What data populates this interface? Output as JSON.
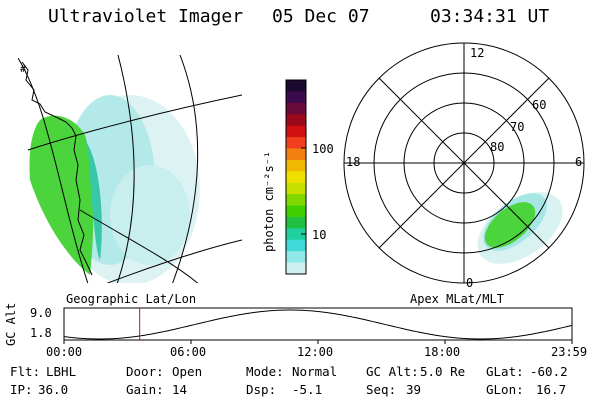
{
  "header": {
    "instrument": "Ultraviolet Imager",
    "date": "05 Dec 07",
    "time": "03:34:31 UT"
  },
  "geo_panel": {
    "label": "Geographic Lat/Lon"
  },
  "colorbar": {
    "unit": "photon cm⁻²s⁻¹",
    "ticks": [
      "100",
      "10"
    ],
    "colors": [
      "#1a0a2e",
      "#3a0a4a",
      "#6a0a3a",
      "#9a0a1a",
      "#d01010",
      "#f04020",
      "#f08010",
      "#f0b800",
      "#f0e000",
      "#c8e000",
      "#80d800",
      "#40d000",
      "#20c040",
      "#20d0a0",
      "#40d8d8",
      "#90e8e8",
      "#d0f0f0"
    ]
  },
  "polar_panel": {
    "label": "Apex MLat/MLT",
    "mlt_labels": {
      "top": "12",
      "left": "18",
      "right": "6",
      "bottom": "0"
    },
    "mlat_labels": [
      "60",
      "70",
      "80"
    ]
  },
  "altitude_plot": {
    "ylabel": "GC Alt",
    "ymax": "9.0",
    "ymin": "1.8",
    "xticks": [
      "00:00",
      "06:00",
      "12:00",
      "18:00",
      "23:59"
    ],
    "current_time_hours": 3.575
  },
  "info": {
    "flt_label": "Flt:",
    "flt_value": "LBHL",
    "door_label": "Door:",
    "door_value": "Open",
    "mode_label": "Mode:",
    "mode_value": "Normal",
    "gcalt_label": "GC Alt:",
    "gcalt_value": "5.0 Re",
    "glat_label": "GLat:",
    "glat_value": "-60.2",
    "ip_label": "IP:",
    "ip_value": "36.0",
    "gain_label": "Gain:",
    "gain_value": "14",
    "dsp_label": "Dsp:",
    "dsp_value": "-5.1",
    "seq_label": "Seq:",
    "seq_value": "39",
    "glon_label": "GLon:",
    "glon_value": "16.7"
  }
}
